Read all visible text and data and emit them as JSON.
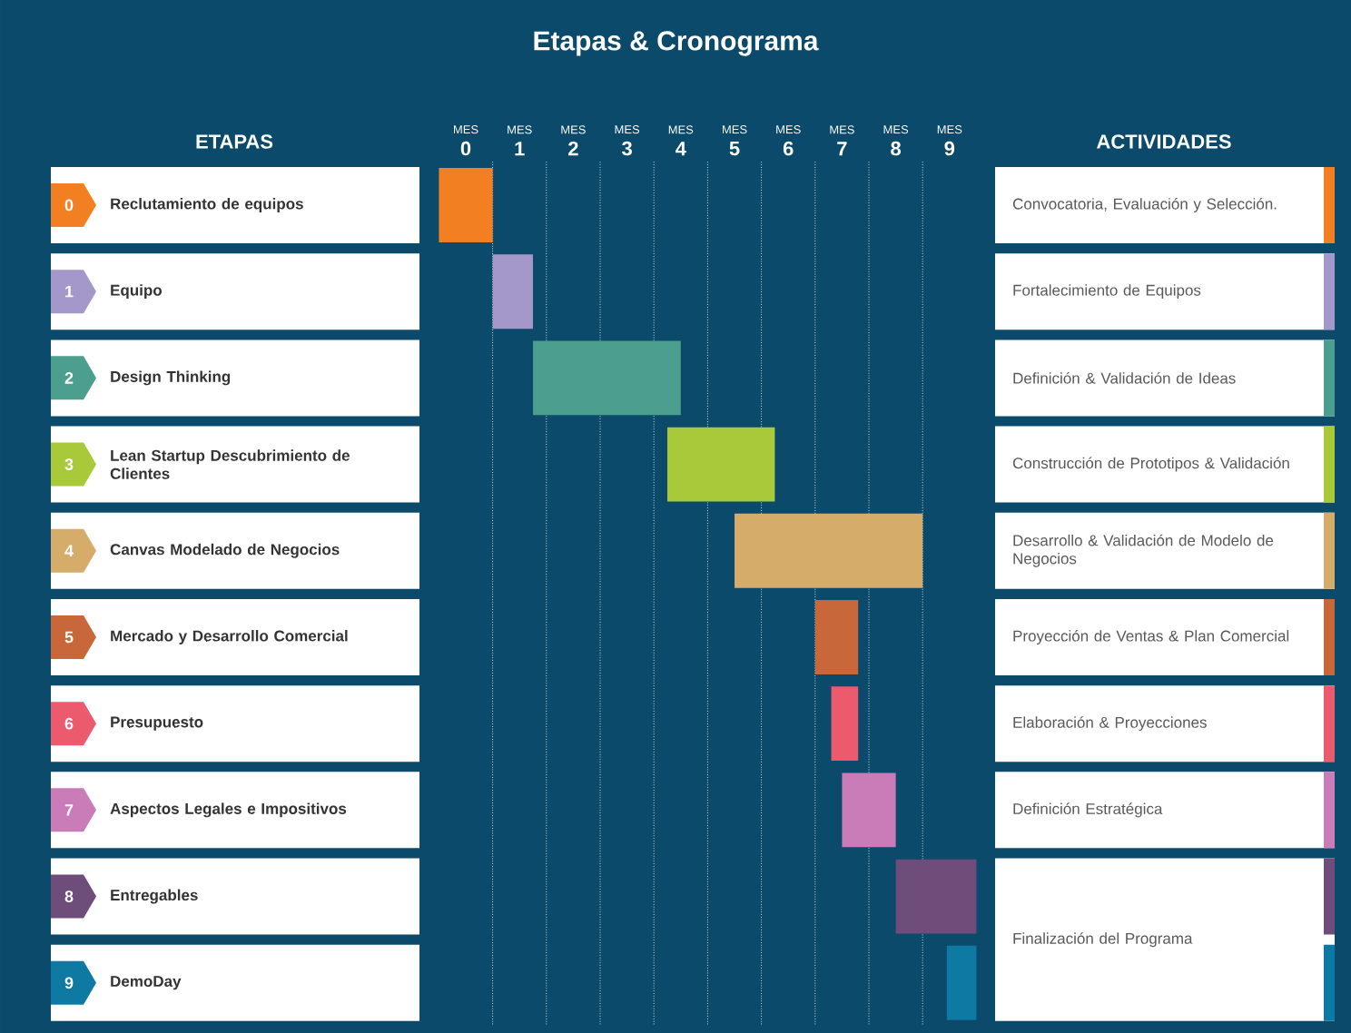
{
  "chart_data": {
    "type": "bar",
    "orientation": "horizontal",
    "title": "Etapas & Cronograma",
    "ylabel": "ETAPAS",
    "categories": [
      "Reclutamiento de equipos",
      "Equipo",
      "Design Thinking",
      "Lean Startup Descubrimiento de Clientes",
      "Canvas Modelado de Negocios",
      "Mercado y Desarrollo Comercial",
      "Presupuesto",
      "Aspectos Legales e Impositivos",
      "Entregables",
      "DemoDay"
    ],
    "base": [
      -0.5,
      0.5,
      1.25,
      3.75,
      5,
      6.5,
      6.8,
      7,
      8,
      8.95
    ],
    "values": [
      1,
      0.75,
      2.75,
      2,
      3.5,
      0.8,
      0.5,
      1,
      1.5,
      0.55
    ],
    "colors": [
      "#f28023",
      "#a398c9",
      "#4c9e8e",
      "#a7c93a",
      "#d6ac6a",
      "#c8683a",
      "#ec5a6e",
      "#c97cb8",
      "#6e4d7b",
      "#0e7aa3"
    ],
    "xlabel": "MES",
    "xlim": [
      -0.5,
      9.5
    ],
    "xticks": [
      0,
      1,
      2,
      3,
      4,
      5,
      6,
      7,
      8,
      9,
      {
        "value": 0.5,
        "label": null
      },
      {
        "value": 1.5,
        "label": null
      },
      {
        "value": 2.5,
        "label": null
      },
      {
        "value": 3.5,
        "label": null
      },
      {
        "value": 4.5,
        "label": null
      },
      {
        "value": 5.5,
        "label": null
      },
      {
        "value": 6.5,
        "label": null
      },
      {
        "value": 7.5,
        "label": null
      },
      {
        "value": 8.5,
        "label": null
      }
    ],
    "grid": "x",
    "annotations": [
      "ACTIVIDADES",
      "Convocatoria, Evaluación y Selección.",
      "Fortalecimiento de Equipos",
      "Definición & Validación de Ideas",
      "Construcción de Prototipos & Validación",
      "Desarrollo & Validación de Modelo de Negocios",
      "Proyección de Ventas & Plan Comercial",
      "Elaboración & Proyecciones",
      "Definición Estratégica",
      "Finalización del Programa",
      "0",
      "1",
      "2",
      "3",
      "4",
      "5",
      "6",
      "7",
      "8",
      "9"
    ]
  }
}
